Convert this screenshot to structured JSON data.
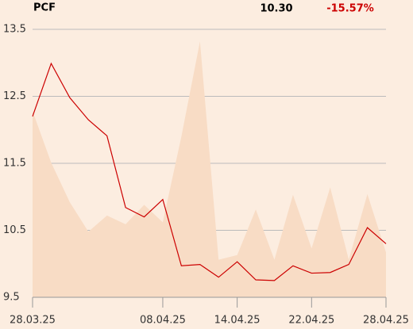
{
  "chart_data": {
    "type": "line",
    "title": "PCF",
    "price": "10.30",
    "change": "-15.57%",
    "categories": [
      "28.03.25",
      null,
      null,
      null,
      null,
      null,
      null,
      "08.04.25",
      null,
      null,
      null,
      "14.04.25",
      null,
      null,
      null,
      "22.04.25",
      null,
      null,
      null,
      "28.04.25"
    ],
    "series": [
      {
        "color": "#f8dcc5",
        "fill": true,
        "values": [
          12.28,
          11.51,
          10.92,
          10.48,
          10.72,
          10.59,
          10.88,
          10.62,
          11.9,
          13.32,
          10.06,
          10.13,
          10.81,
          10.06,
          11.03,
          10.23,
          11.14,
          10.06,
          11.04,
          10.17
        ]
      },
      {
        "color": "#cc0000",
        "fill": false,
        "values": [
          12.2,
          12.99,
          12.48,
          12.15,
          11.91,
          10.84,
          10.7,
          10.96,
          9.97,
          9.99,
          9.8,
          10.03,
          9.76,
          9.75,
          9.97,
          9.86,
          9.87,
          9.99,
          10.54,
          10.3
        ]
      }
    ],
    "ylim": [
      9.5,
      13.5
    ],
    "yticks": [
      9.5,
      10.5,
      11.5,
      12.5,
      13.5
    ],
    "grid": true
  }
}
